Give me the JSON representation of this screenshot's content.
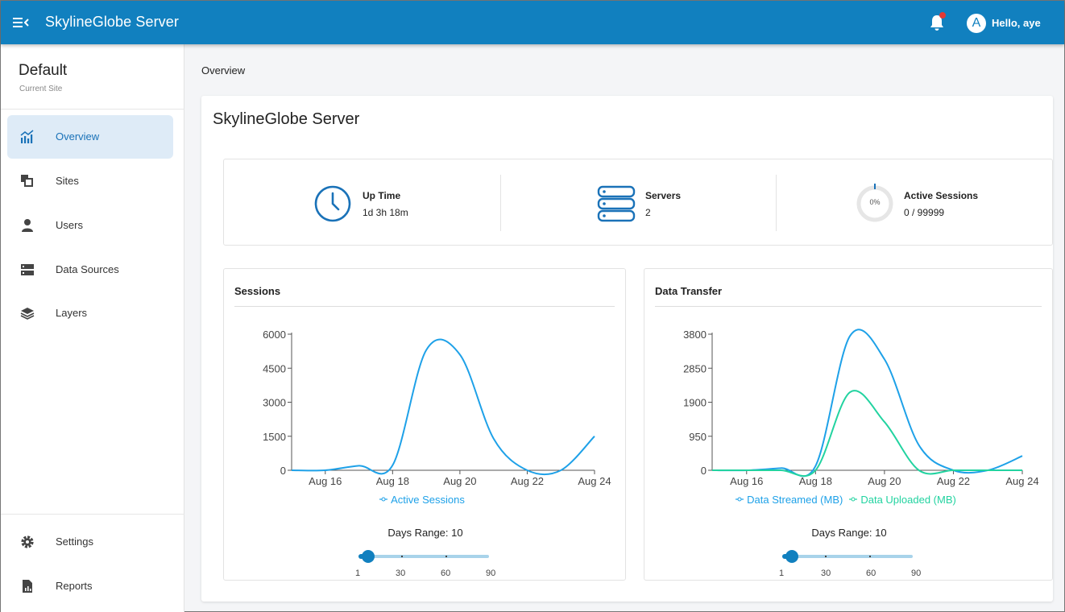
{
  "header": {
    "app_title": "SkylineGlobe Server",
    "menu_icon": "menu-collapse-icon",
    "notification_icon": "bell-icon",
    "avatar_letter": "A",
    "greeting": "Hello, aye",
    "brand_color": "#1180bf"
  },
  "sidebar": {
    "site_name": "Default",
    "site_subtitle": "Current Site",
    "items": [
      {
        "label": "Overview",
        "icon": "chart-icon",
        "active": true
      },
      {
        "label": "Sites",
        "icon": "sites-icon",
        "active": false
      },
      {
        "label": "Users",
        "icon": "user-icon",
        "active": false
      },
      {
        "label": "Data Sources",
        "icon": "server-icon",
        "active": false
      },
      {
        "label": "Layers",
        "icon": "layers-icon",
        "active": false
      }
    ],
    "bottom_items": [
      {
        "label": "Settings",
        "icon": "gear-icon"
      },
      {
        "label": "Reports",
        "icon": "report-icon"
      }
    ]
  },
  "breadcrumb": "Overview",
  "main": {
    "title": "SkylineGlobe Server",
    "stats": [
      {
        "label": "Up Time",
        "value": "1d 3h 18m",
        "icon": "clock-icon"
      },
      {
        "label": "Servers",
        "value": "2",
        "icon": "servers-icon"
      },
      {
        "label": "Active Sessions",
        "value": "0 / 99999",
        "icon": "progress-ring-icon",
        "percent_text": "0%",
        "percent": 0
      }
    ]
  },
  "sessions_panel": {
    "title": "Sessions",
    "days_range_label": "Days Range: 10",
    "slider": {
      "min": 1,
      "max": 90,
      "value": 10,
      "marks": [
        "1",
        "30",
        "60",
        "90"
      ]
    }
  },
  "transfer_panel": {
    "title": "Data Transfer",
    "days_range_label": "Days Range: 10",
    "slider": {
      "min": 1,
      "max": 90,
      "value": 10,
      "marks": [
        "1",
        "30",
        "60",
        "90"
      ]
    }
  },
  "chart_data": [
    {
      "type": "line",
      "title": "Sessions",
      "x": [
        "Aug 15",
        "Aug 16",
        "Aug 17",
        "Aug 18",
        "Aug 19",
        "Aug 20",
        "Aug 21",
        "Aug 22",
        "Aug 23",
        "Aug 24"
      ],
      "x_tick_labels": [
        "Aug 16",
        "Aug 18",
        "Aug 20",
        "Aug 22",
        "Aug 24"
      ],
      "y_ticks": [
        "0",
        "1500",
        "3000",
        "4500",
        "6000"
      ],
      "ylim": [
        0,
        6000
      ],
      "series": [
        {
          "name": "Active Sessions",
          "color": "#1ea1e8",
          "values": [
            0,
            0,
            200,
            220,
            5300,
            5100,
            1400,
            0,
            0,
            1500
          ]
        }
      ],
      "legend": "bottom"
    },
    {
      "type": "line",
      "title": "Data Transfer",
      "x": [
        "Aug 15",
        "Aug 16",
        "Aug 17",
        "Aug 18",
        "Aug 19",
        "Aug 20",
        "Aug 21",
        "Aug 22",
        "Aug 23",
        "Aug 24"
      ],
      "x_tick_labels": [
        "Aug 16",
        "Aug 18",
        "Aug 20",
        "Aug 22",
        "Aug 24"
      ],
      "y_ticks": [
        "0",
        "950",
        "1900",
        "2850",
        "3800"
      ],
      "ylim": [
        0,
        3800
      ],
      "series": [
        {
          "name": "Data Streamed (MB)",
          "color": "#1ea1e8",
          "values": [
            0,
            0,
            60,
            120,
            3750,
            3100,
            700,
            0,
            0,
            400
          ]
        },
        {
          "name": "Data Uploaded (MB)",
          "color": "#22d3a0",
          "values": [
            0,
            0,
            0,
            0,
            2180,
            1350,
            0,
            0,
            0,
            0
          ]
        }
      ],
      "legend": "bottom"
    }
  ]
}
